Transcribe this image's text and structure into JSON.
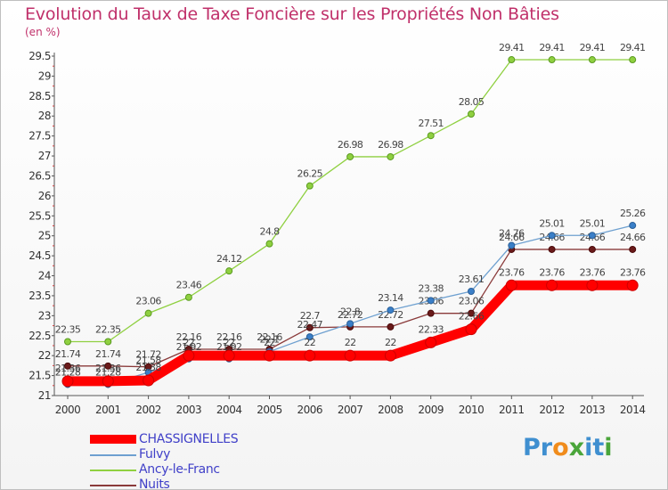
{
  "title": "Evolution du Taux de Taxe Foncière sur les Propriétés Non Bâties",
  "subtitle": "(en %)",
  "logo": {
    "text": "Proxiti",
    "letters": [
      {
        "ch": "P",
        "color": "#3f8fd0"
      },
      {
        "ch": "r",
        "color": "#3f8fd0"
      },
      {
        "ch": "o",
        "color": "#f08c1c"
      },
      {
        "ch": "x",
        "color": "#4aa53a"
      },
      {
        "ch": "i",
        "color": "#3f8fd0"
      },
      {
        "ch": "t",
        "color": "#3f8fd0"
      },
      {
        "ch": "i",
        "color": "#4aa53a"
      }
    ]
  },
  "chart_data": {
    "type": "line",
    "title": "Evolution du Taux de Taxe Foncière sur les Propriétés Non Bâties",
    "ylabel": "(en %)",
    "xlabel": "",
    "x": [
      "2000",
      "2001",
      "2002",
      "2003",
      "2004",
      "2005",
      "2006",
      "2007",
      "2008",
      "2009",
      "2010",
      "2011",
      "2012",
      "2013",
      "2014"
    ],
    "ylim": [
      21,
      29.5
    ],
    "yticks": [
      "21",
      "21.5",
      "22",
      "22.5",
      "23",
      "23.5",
      "24",
      "24.5",
      "25",
      "25.5",
      "26",
      "26.5",
      "27",
      "27.5",
      "28",
      "28.5",
      "29",
      "29.5"
    ],
    "grid": false,
    "legend_position": "bottom-left",
    "series": [
      {
        "name": "CHASSIGNELLES",
        "color": "#ff0000",
        "values": [
          21.36,
          21.36,
          21.38,
          22.0,
          22.0,
          22.0,
          22.0,
          22.0,
          22.0,
          22.33,
          22.66,
          23.76,
          23.76,
          23.76,
          23.76
        ],
        "labels": [
          "21.36",
          "21.36",
          "21.38",
          "22",
          "22",
          "22",
          "22",
          "22",
          "22",
          "22.33",
          "22.66",
          "23.76",
          "23.76",
          "23.76",
          "23.76"
        ]
      },
      {
        "name": "Fulvy",
        "color": "#6ea0d0",
        "values": [
          21.28,
          21.28,
          21.58,
          21.92,
          21.92,
          22.1,
          22.47,
          22.8,
          23.14,
          23.38,
          23.61,
          24.76,
          25.01,
          25.01,
          25.26
        ],
        "labels": [
          "21.28",
          "21.28",
          "21.58",
          "21.92",
          "21.92",
          "22.1",
          "22.47",
          "22.8",
          "23.14",
          "23.38",
          "23.61",
          "24.76",
          "25.01",
          "25.01",
          "25.26"
        ]
      },
      {
        "name": "Ancy-le-Franc",
        "color": "#8fd040",
        "values": [
          22.35,
          22.35,
          23.06,
          23.46,
          24.12,
          24.8,
          26.25,
          26.98,
          26.98,
          27.51,
          28.05,
          29.41,
          29.41,
          29.41,
          29.41
        ],
        "labels": [
          "22.35",
          "22.35",
          "23.06",
          "23.46",
          "24.12",
          "24.8",
          "26.25",
          "26.98",
          "26.98",
          "27.51",
          "28.05",
          "29.41",
          "29.41",
          "29.41",
          "29.41"
        ]
      },
      {
        "name": "Nuits",
        "color": "#8a3a3a",
        "values": [
          21.74,
          21.74,
          21.72,
          22.16,
          22.16,
          22.16,
          22.7,
          22.72,
          22.72,
          23.06,
          23.06,
          24.66,
          24.66,
          24.66,
          24.66
        ],
        "labels": [
          "21.74",
          "21.74",
          "21.72",
          "22.16",
          "22.16",
          "22.16",
          "22.7",
          "22.72",
          "22.72",
          "23.06",
          "23.06",
          "24.66",
          "24.66",
          "24.66",
          "24.66"
        ]
      }
    ]
  }
}
